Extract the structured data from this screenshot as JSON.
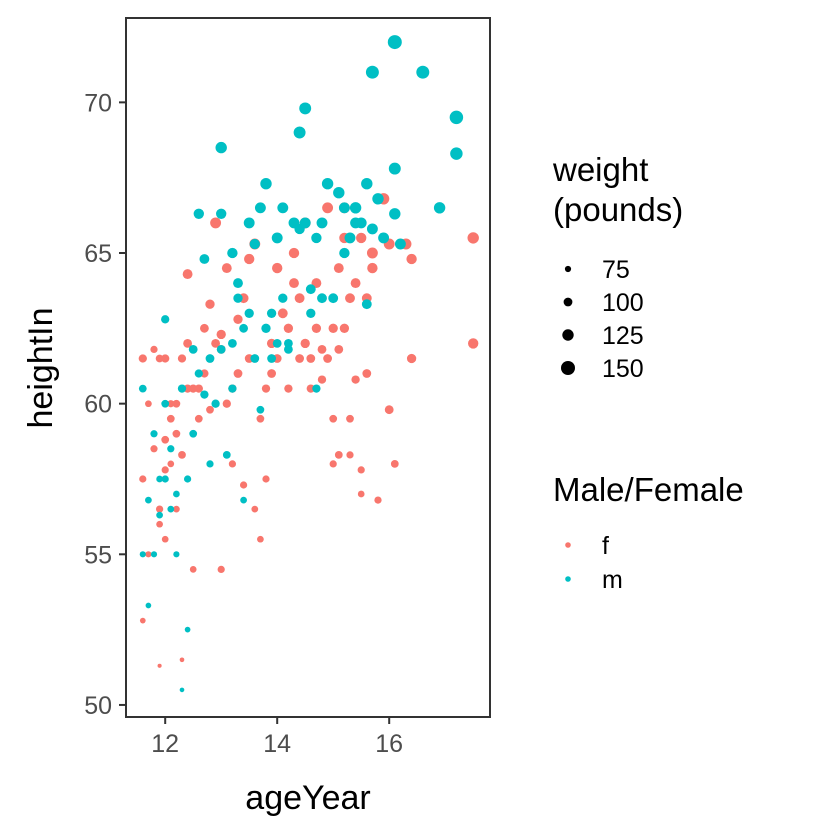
{
  "chart_data": {
    "type": "scatter",
    "xlabel": "ageYear",
    "ylabel": "heightIn",
    "xlim": [
      11.3,
      17.8
    ],
    "ylim": [
      49.6,
      72.8
    ],
    "xticks": [
      12,
      14,
      16
    ],
    "yticks": [
      50,
      55,
      60,
      65,
      70
    ],
    "grid": false,
    "legend_placement": "right",
    "size_legend": {
      "title_lines": [
        "weight",
        "(pounds)"
      ],
      "values": [
        75,
        100,
        125,
        150
      ]
    },
    "color_legend": {
      "title": "Male/Female",
      "entries": [
        {
          "key": "f",
          "color": "#F8766D"
        },
        {
          "key": "m",
          "color": "#00BFC4"
        }
      ]
    },
    "series": [
      {
        "name": "f",
        "color": "#F8766D",
        "points": [
          [
            11.6,
            52.8,
            70
          ],
          [
            11.6,
            57.5,
            85
          ],
          [
            11.6,
            61.5,
            95
          ],
          [
            11.7,
            55.0,
            75
          ],
          [
            11.7,
            60.0,
            80
          ],
          [
            11.8,
            58.5,
            85
          ],
          [
            11.8,
            61.8,
            85
          ],
          [
            11.9,
            61.5,
            90
          ],
          [
            11.9,
            56.0,
            80
          ],
          [
            11.9,
            56.5,
            85
          ],
          [
            11.9,
            51.3,
            55
          ],
          [
            12.0,
            61.5,
            95
          ],
          [
            12.0,
            58.8,
            90
          ],
          [
            12.0,
            57.8,
            85
          ],
          [
            12.0,
            55.5,
            80
          ],
          [
            12.1,
            59.5,
            90
          ],
          [
            12.1,
            60.0,
            85
          ],
          [
            12.1,
            58.0,
            80
          ],
          [
            12.2,
            60.0,
            90
          ],
          [
            12.2,
            59.0,
            85
          ],
          [
            12.2,
            56.5,
            80
          ],
          [
            12.3,
            58.3,
            90
          ],
          [
            12.3,
            61.5,
            95
          ],
          [
            12.3,
            51.5,
            60
          ],
          [
            12.4,
            62.0,
            100
          ],
          [
            12.4,
            60.5,
            95
          ],
          [
            12.4,
            64.3,
            110
          ],
          [
            12.5,
            60.5,
            95
          ],
          [
            12.5,
            54.5,
            80
          ],
          [
            12.6,
            60.5,
            95
          ],
          [
            12.6,
            59.5,
            90
          ],
          [
            12.7,
            61.0,
            95
          ],
          [
            12.7,
            62.5,
            100
          ],
          [
            12.8,
            63.3,
            105
          ],
          [
            12.8,
            59.8,
            90
          ],
          [
            12.9,
            62.0,
            100
          ],
          [
            12.9,
            66.0,
            120
          ],
          [
            13.0,
            61.8,
            100
          ],
          [
            13.0,
            62.3,
            105
          ],
          [
            13.0,
            54.5,
            85
          ],
          [
            13.1,
            64.5,
            110
          ],
          [
            13.2,
            60.5,
            95
          ],
          [
            13.2,
            58.0,
            85
          ],
          [
            13.3,
            61.0,
            100
          ],
          [
            13.3,
            62.8,
            105
          ],
          [
            13.4,
            63.5,
            110
          ],
          [
            13.4,
            57.3,
            85
          ],
          [
            13.5,
            64.8,
            115
          ],
          [
            13.5,
            61.5,
            100
          ],
          [
            13.6,
            65.3,
            120
          ],
          [
            13.6,
            56.5,
            80
          ],
          [
            13.7,
            59.5,
            90
          ],
          [
            13.7,
            55.5,
            80
          ],
          [
            13.8,
            57.5,
            85
          ],
          [
            13.8,
            60.5,
            95
          ],
          [
            13.9,
            61.0,
            100
          ],
          [
            13.9,
            62.0,
            105
          ],
          [
            14.0,
            64.5,
            115
          ],
          [
            14.0,
            61.5,
            100
          ],
          [
            14.1,
            63.0,
            110
          ],
          [
            14.2,
            62.5,
            105
          ],
          [
            14.2,
            60.5,
            95
          ],
          [
            14.3,
            64.0,
            110
          ],
          [
            14.3,
            65.0,
            115
          ],
          [
            14.4,
            61.5,
            100
          ],
          [
            14.4,
            63.5,
            110
          ],
          [
            14.5,
            62.0,
            105
          ],
          [
            14.5,
            66.0,
            120
          ],
          [
            14.6,
            61.5,
            100
          ],
          [
            14.6,
            60.5,
            95
          ],
          [
            14.7,
            62.5,
            105
          ],
          [
            14.7,
            64.0,
            110
          ],
          [
            14.8,
            61.8,
            100
          ],
          [
            14.8,
            60.8,
            95
          ],
          [
            14.9,
            66.5,
            120
          ],
          [
            14.9,
            61.5,
            100
          ],
          [
            15.0,
            62.5,
            105
          ],
          [
            15.0,
            59.5,
            90
          ],
          [
            15.0,
            58.0,
            85
          ],
          [
            15.1,
            61.8,
            100
          ],
          [
            15.1,
            64.5,
            110
          ],
          [
            15.1,
            58.3,
            90
          ],
          [
            15.2,
            65.5,
            115
          ],
          [
            15.2,
            66.5,
            120
          ],
          [
            15.2,
            62.5,
            105
          ],
          [
            15.3,
            59.5,
            90
          ],
          [
            15.3,
            63.5,
            110
          ],
          [
            15.3,
            58.3,
            85
          ],
          [
            15.4,
            64.0,
            110
          ],
          [
            15.4,
            60.8,
            95
          ],
          [
            15.5,
            65.5,
            115
          ],
          [
            15.5,
            57.8,
            85
          ],
          [
            15.5,
            57.0,
            80
          ],
          [
            15.6,
            63.5,
            110
          ],
          [
            15.6,
            61.0,
            100
          ],
          [
            15.7,
            65.0,
            120
          ],
          [
            15.7,
            64.5,
            115
          ],
          [
            15.8,
            56.8,
            85
          ],
          [
            15.9,
            66.8,
            125
          ],
          [
            16.0,
            65.3,
            120
          ],
          [
            16.0,
            59.8,
            100
          ],
          [
            16.1,
            58.0,
            90
          ],
          [
            16.3,
            65.3,
            120
          ],
          [
            16.4,
            64.8,
            115
          ],
          [
            16.4,
            61.5,
            105
          ],
          [
            17.5,
            65.5,
            125
          ],
          [
            17.5,
            62.0,
            115
          ],
          [
            12.2,
            59.0,
            90
          ],
          [
            13.1,
            60.0,
            95
          ]
        ]
      },
      {
        "name": "m",
        "color": "#00BFC4",
        "points": [
          [
            11.6,
            60.5,
            90
          ],
          [
            11.6,
            55.0,
            75
          ],
          [
            11.7,
            56.8,
            80
          ],
          [
            11.7,
            53.3,
            70
          ],
          [
            11.8,
            59.0,
            85
          ],
          [
            11.8,
            55.0,
            75
          ],
          [
            11.9,
            57.5,
            80
          ],
          [
            11.9,
            56.3,
            80
          ],
          [
            12.0,
            60.0,
            90
          ],
          [
            12.0,
            62.8,
            95
          ],
          [
            12.0,
            57.5,
            85
          ],
          [
            12.1,
            58.5,
            85
          ],
          [
            12.1,
            56.5,
            80
          ],
          [
            12.2,
            57.0,
            80
          ],
          [
            12.2,
            55.0,
            75
          ],
          [
            12.3,
            60.5,
            95
          ],
          [
            12.3,
            50.5,
            60
          ],
          [
            12.4,
            52.5,
            70
          ],
          [
            12.4,
            57.5,
            85
          ],
          [
            12.5,
            61.8,
            100
          ],
          [
            12.5,
            59.0,
            90
          ],
          [
            12.6,
            61.0,
            95
          ],
          [
            12.6,
            66.3,
            115
          ],
          [
            12.7,
            60.3,
            95
          ],
          [
            12.7,
            64.8,
            110
          ],
          [
            12.8,
            61.5,
            100
          ],
          [
            12.8,
            58.0,
            85
          ],
          [
            12.9,
            60.0,
            95
          ],
          [
            13.0,
            61.8,
            100
          ],
          [
            13.0,
            66.3,
            115
          ],
          [
            13.0,
            68.5,
            125
          ],
          [
            13.1,
            58.3,
            90
          ],
          [
            13.2,
            65.0,
            115
          ],
          [
            13.2,
            60.5,
            95
          ],
          [
            13.3,
            63.5,
            105
          ],
          [
            13.3,
            64.0,
            110
          ],
          [
            13.4,
            62.5,
            100
          ],
          [
            13.4,
            56.8,
            80
          ],
          [
            13.5,
            66.0,
            120
          ],
          [
            13.5,
            63.0,
            105
          ],
          [
            13.6,
            65.3,
            115
          ],
          [
            13.6,
            61.5,
            100
          ],
          [
            13.7,
            66.5,
            120
          ],
          [
            13.7,
            59.8,
            90
          ],
          [
            13.8,
            67.3,
            125
          ],
          [
            13.8,
            62.5,
            105
          ],
          [
            13.9,
            63.0,
            105
          ],
          [
            13.9,
            61.5,
            100
          ],
          [
            14.0,
            65.5,
            120
          ],
          [
            14.0,
            62.0,
            100
          ],
          [
            14.1,
            66.5,
            120
          ],
          [
            14.1,
            63.5,
            105
          ],
          [
            14.2,
            62.0,
            100
          ],
          [
            14.3,
            66.0,
            120
          ],
          [
            14.4,
            69.0,
            130
          ],
          [
            14.4,
            65.8,
            115
          ],
          [
            14.5,
            69.8,
            130
          ],
          [
            14.5,
            66.0,
            120
          ],
          [
            14.6,
            63.8,
            110
          ],
          [
            14.6,
            63.0,
            105
          ],
          [
            14.7,
            65.5,
            115
          ],
          [
            14.7,
            60.5,
            95
          ],
          [
            14.8,
            66.0,
            120
          ],
          [
            14.8,
            63.5,
            110
          ],
          [
            14.9,
            67.3,
            125
          ],
          [
            15.0,
            63.5,
            110
          ],
          [
            15.1,
            67.0,
            125
          ],
          [
            15.2,
            66.5,
            120
          ],
          [
            15.2,
            65.0,
            115
          ],
          [
            15.3,
            65.5,
            120
          ],
          [
            15.4,
            66.0,
            120
          ],
          [
            15.4,
            66.5,
            125
          ],
          [
            15.5,
            66.0,
            120
          ],
          [
            15.6,
            67.3,
            125
          ],
          [
            15.6,
            63.3,
            110
          ],
          [
            15.7,
            71.0,
            140
          ],
          [
            15.7,
            65.8,
            120
          ],
          [
            15.8,
            66.8,
            125
          ],
          [
            15.9,
            65.5,
            120
          ],
          [
            16.1,
            72.0,
            150
          ],
          [
            16.1,
            67.8,
            130
          ],
          [
            16.1,
            66.3,
            125
          ],
          [
            16.2,
            65.3,
            120
          ],
          [
            16.6,
            71.0,
            140
          ],
          [
            16.9,
            66.5,
            125
          ],
          [
            17.2,
            69.5,
            145
          ],
          [
            17.2,
            68.3,
            135
          ],
          [
            13.2,
            62.0,
            100
          ],
          [
            14.2,
            61.8,
            100
          ]
        ]
      }
    ]
  }
}
